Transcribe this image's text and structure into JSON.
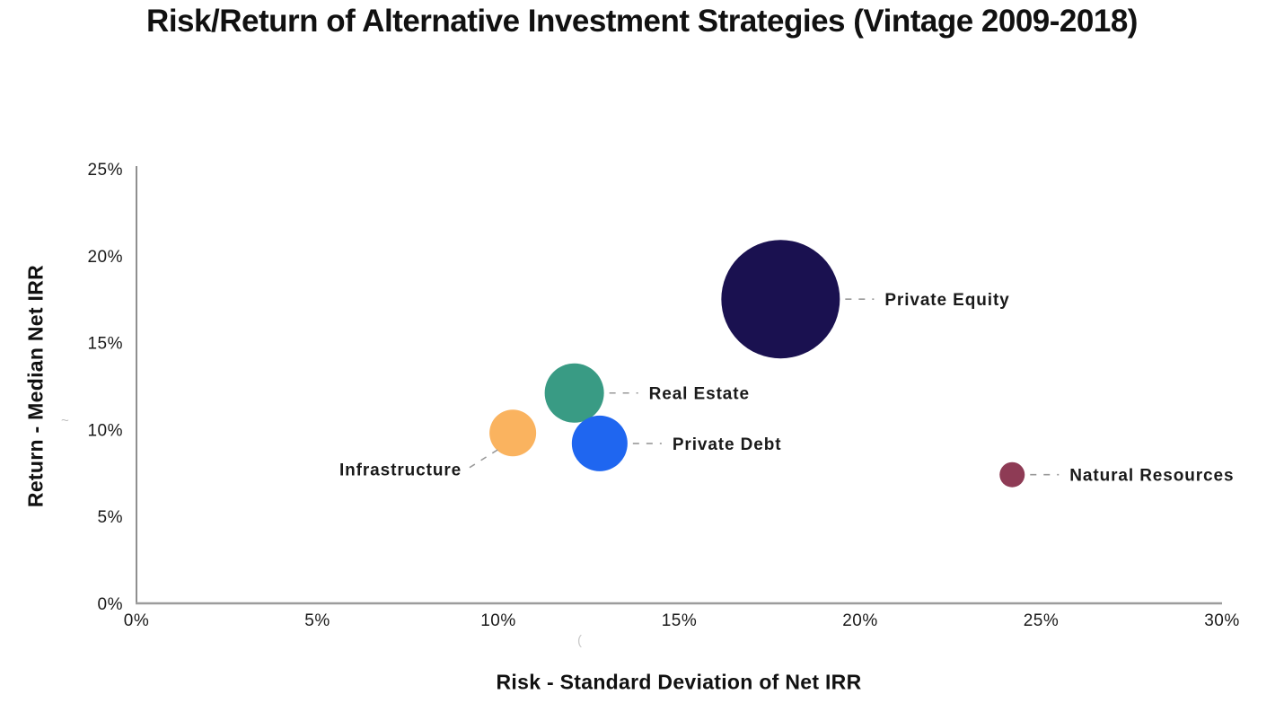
{
  "chart_data": {
    "type": "scatter",
    "subtype": "bubble",
    "title": "Risk/Return of Alternative Investment Strategies (Vintage 2009-2018)",
    "xlabel": "Risk - Standard Deviation of Net IRR",
    "ylabel": "Return - Median Net IRR",
    "xlim": [
      0,
      30
    ],
    "ylim": [
      0,
      25
    ],
    "x_ticks": [
      0,
      5,
      10,
      15,
      20,
      25,
      30
    ],
    "x_tick_labels": [
      "0%",
      "5%",
      "10%",
      "15%",
      "20%",
      "25%",
      "30%"
    ],
    "y_ticks": [
      0,
      5,
      10,
      15,
      20,
      25
    ],
    "y_tick_labels": [
      "0%",
      "5%",
      "10%",
      "15%",
      "20%",
      "25%"
    ],
    "grid": false,
    "legend": "none (direct labels with dashed leader lines)",
    "axis_color": "#8f8f8f",
    "leader_line_color": "#999999",
    "text_color": "#1a1a1a",
    "points": [
      {
        "label": "Private Equity",
        "risk_pct": 17.8,
        "return_pct": 17.5,
        "radius_px": 66,
        "color": "#1a1150",
        "label_position": "right"
      },
      {
        "label": "Real Estate",
        "risk_pct": 12.1,
        "return_pct": 12.1,
        "radius_px": 33,
        "color": "#399b84",
        "label_position": "right"
      },
      {
        "label": "Private Debt",
        "risk_pct": 12.8,
        "return_pct": 9.2,
        "radius_px": 31,
        "color": "#1f66f0",
        "label_position": "right"
      },
      {
        "label": "Infrastructure",
        "risk_pct": 10.4,
        "return_pct": 9.8,
        "radius_px": 26,
        "color": "#fab35f",
        "label_position": "left-below"
      },
      {
        "label": "Natural Resources",
        "risk_pct": 24.2,
        "return_pct": 7.4,
        "radius_px": 14,
        "color": "#8e3b55",
        "label_position": "right"
      }
    ]
  },
  "artifacts": {
    "tilde_mark": "~",
    "stray_mark": "("
  }
}
